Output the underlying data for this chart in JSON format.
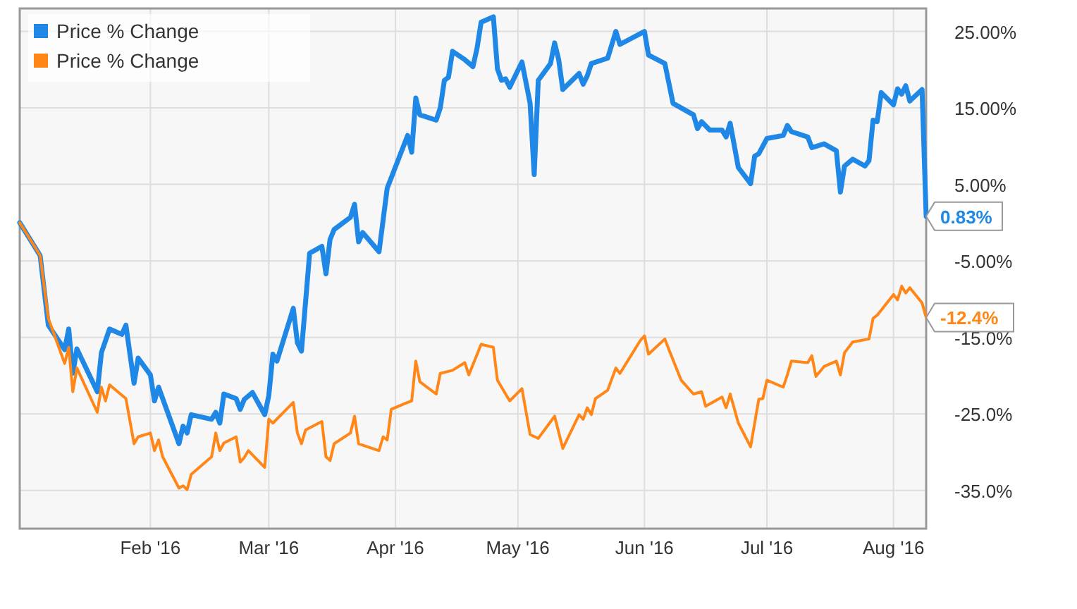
{
  "chart_data": {
    "type": "line",
    "xlim": [
      "2015-12-31",
      "2016-08-09"
    ],
    "xticks": [
      {
        "value": "2016-02-01",
        "label": "Feb '16"
      },
      {
        "value": "2016-03-01",
        "label": "Mar '16"
      },
      {
        "value": "2016-04-01",
        "label": "Apr '16"
      },
      {
        "value": "2016-05-01",
        "label": "May '16"
      },
      {
        "value": "2016-06-01",
        "label": "Jun '16"
      },
      {
        "value": "2016-07-01",
        "label": "Jul '16"
      },
      {
        "value": "2016-08-01",
        "label": "Aug '16"
      }
    ],
    "ylim": [
      -40,
      28
    ],
    "yticks": [
      {
        "value": 25,
        "label": "25.00%"
      },
      {
        "value": 15,
        "label": "15.00%"
      },
      {
        "value": 5,
        "label": "5.00%"
      },
      {
        "value": -5,
        "label": "-5.00%"
      },
      {
        "value": -15,
        "label": "-15.0%"
      },
      {
        "value": -25,
        "label": "-25.0%"
      },
      {
        "value": -35,
        "label": "-35.0%"
      }
    ],
    "grid": true,
    "legend": "top left",
    "marker": "none",
    "line_style": "solid",
    "series": [
      {
        "name": "Price % Change",
        "color": "#1f87e5",
        "x": [
          "2015-12-31",
          "2016-01-05",
          "2016-01-07",
          "2016-01-11",
          "2016-01-12",
          "2016-01-13",
          "2016-01-14",
          "2016-01-19",
          "2016-01-20",
          "2016-01-22",
          "2016-01-25",
          "2016-01-26",
          "2016-01-28",
          "2016-01-29",
          "2016-02-01",
          "2016-02-02",
          "2016-02-03",
          "2016-02-08",
          "2016-02-09",
          "2016-02-10",
          "2016-02-11",
          "2016-02-16",
          "2016-02-17",
          "2016-02-18",
          "2016-02-19",
          "2016-02-22",
          "2016-02-23",
          "2016-02-24",
          "2016-02-26",
          "2016-02-29",
          "2016-03-01",
          "2016-03-02",
          "2016-03-03",
          "2016-03-07",
          "2016-03-08",
          "2016-03-09",
          "2016-03-11",
          "2016-03-14",
          "2016-03-15",
          "2016-03-16",
          "2016-03-17",
          "2016-03-21",
          "2016-03-22",
          "2016-03-23",
          "2016-03-24",
          "2016-03-28",
          "2016-03-30",
          "2016-04-04",
          "2016-04-05",
          "2016-04-06",
          "2016-04-07",
          "2016-04-11",
          "2016-04-12",
          "2016-04-13",
          "2016-04-14",
          "2016-04-15",
          "2016-04-18",
          "2016-04-20",
          "2016-04-21",
          "2016-04-22",
          "2016-04-25",
          "2016-04-26",
          "2016-04-27",
          "2016-04-28",
          "2016-04-29",
          "2016-05-02",
          "2016-05-04",
          "2016-05-05",
          "2016-05-06",
          "2016-05-09",
          "2016-05-10",
          "2016-05-11",
          "2016-05-12",
          "2016-05-16",
          "2016-05-17",
          "2016-05-18",
          "2016-05-19",
          "2016-05-23",
          "2016-05-25",
          "2016-05-26",
          "2016-06-01",
          "2016-06-02",
          "2016-06-06",
          "2016-06-08",
          "2016-06-13",
          "2016-06-14",
          "2016-06-15",
          "2016-06-17",
          "2016-06-20",
          "2016-06-21",
          "2016-06-22",
          "2016-06-24",
          "2016-06-27",
          "2016-06-28",
          "2016-06-29",
          "2016-07-01",
          "2016-07-05",
          "2016-07-06",
          "2016-07-07",
          "2016-07-11",
          "2016-07-12",
          "2016-07-15",
          "2016-07-18",
          "2016-07-19",
          "2016-07-20",
          "2016-07-22",
          "2016-07-25",
          "2016-07-26",
          "2016-07-27",
          "2016-07-28",
          "2016-07-29",
          "2016-08-01",
          "2016-08-02",
          "2016-08-03",
          "2016-08-04",
          "2016-08-05",
          "2016-08-08",
          "2016-08-09"
        ],
        "values": [
          0,
          -4.3,
          -13.4,
          -16.6,
          -13.9,
          -19.7,
          -16.5,
          -22.1,
          -17,
          -13.9,
          -14.6,
          -13.4,
          -21,
          -17.7,
          -19.9,
          -23.3,
          -21.5,
          -28.9,
          -26.6,
          -27.5,
          -25.1,
          -25.7,
          -24.8,
          -26.2,
          -22.4,
          -23,
          -24.4,
          -23.1,
          -22.2,
          -25.1,
          -22.6,
          -17.2,
          -18.1,
          -11.2,
          -15.7,
          -16.8,
          -4,
          -3.1,
          -6.7,
          -2.2,
          -0.9,
          0.7,
          2.4,
          -2.5,
          -1.3,
          -3.8,
          4.5,
          11.4,
          9.2,
          16.3,
          14.1,
          13.4,
          15,
          18.6,
          19,
          22.4,
          21.3,
          20.4,
          22.8,
          26.2,
          26.9,
          20.1,
          18.6,
          18.8,
          17.7,
          21,
          15.6,
          6.3,
          18.6,
          20.8,
          23.5,
          21.3,
          17.4,
          19.5,
          18.1,
          19.2,
          20.8,
          21.5,
          25,
          23.3,
          25,
          21.9,
          20.8,
          15.6,
          14.1,
          12.3,
          13.2,
          12.1,
          12.1,
          11.2,
          13,
          7.2,
          5.1,
          8.7,
          9,
          11,
          11.4,
          12.7,
          11.9,
          11.2,
          9.8,
          10.3,
          9.4,
          4,
          7.4,
          8.3,
          7.4,
          8.1,
          13.4,
          13.2,
          17,
          15.4,
          17.5,
          16.8,
          17.9,
          15.9,
          17.4,
          0.83
        ]
      },
      {
        "name": "Price % Change",
        "color": "#ff8617",
        "x": [
          "2015-12-31",
          "2016-01-05",
          "2016-01-07",
          "2016-01-11",
          "2016-01-12",
          "2016-01-13",
          "2016-01-14",
          "2016-01-19",
          "2016-01-20",
          "2016-01-21",
          "2016-01-22",
          "2016-01-26",
          "2016-01-28",
          "2016-01-29",
          "2016-02-01",
          "2016-02-02",
          "2016-02-03",
          "2016-02-04",
          "2016-02-08",
          "2016-02-09",
          "2016-02-10",
          "2016-02-11",
          "2016-02-16",
          "2016-02-17",
          "2016-02-18",
          "2016-02-19",
          "2016-02-22",
          "2016-02-23",
          "2016-02-24",
          "2016-02-25",
          "2016-02-29",
          "2016-03-01",
          "2016-03-02",
          "2016-03-07",
          "2016-03-08",
          "2016-03-09",
          "2016-03-10",
          "2016-03-14",
          "2016-03-15",
          "2016-03-16",
          "2016-03-17",
          "2016-03-21",
          "2016-03-22",
          "2016-03-23",
          "2016-03-28",
          "2016-03-29",
          "2016-03-30",
          "2016-03-31",
          "2016-04-04",
          "2016-04-05",
          "2016-04-06",
          "2016-04-07",
          "2016-04-11",
          "2016-04-12",
          "2016-04-15",
          "2016-04-18",
          "2016-04-19",
          "2016-04-22",
          "2016-04-25",
          "2016-04-26",
          "2016-04-29",
          "2016-05-02",
          "2016-05-04",
          "2016-05-06",
          "2016-05-10",
          "2016-05-12",
          "2016-05-16",
          "2016-05-17",
          "2016-05-18",
          "2016-05-19",
          "2016-05-20",
          "2016-05-23",
          "2016-05-25",
          "2016-05-26",
          "2016-05-31",
          "2016-06-01",
          "2016-06-02",
          "2016-06-06",
          "2016-06-07",
          "2016-06-10",
          "2016-06-13",
          "2016-06-15",
          "2016-06-16",
          "2016-06-20",
          "2016-06-21",
          "2016-06-22",
          "2016-06-24",
          "2016-06-27",
          "2016-06-29",
          "2016-06-30",
          "2016-07-01",
          "2016-07-05",
          "2016-07-06",
          "2016-07-07",
          "2016-07-11",
          "2016-07-12",
          "2016-07-13",
          "2016-07-15",
          "2016-07-18",
          "2016-07-19",
          "2016-07-20",
          "2016-07-22",
          "2016-07-26",
          "2016-07-27",
          "2016-07-28",
          "2016-08-01",
          "2016-08-02",
          "2016-08-03",
          "2016-08-04",
          "2016-08-05",
          "2016-08-08",
          "2016-08-09"
        ],
        "values": [
          0,
          -4.3,
          -12.5,
          -18.4,
          -16.3,
          -22.1,
          -19,
          -24.8,
          -21.5,
          -23.3,
          -21.2,
          -23,
          -28.9,
          -28,
          -27.5,
          -29.8,
          -28.4,
          -30.6,
          -34.7,
          -34.4,
          -34.9,
          -32.9,
          -30.6,
          -27.5,
          -29.8,
          -28.8,
          -28,
          -31.3,
          -30.7,
          -29.8,
          -32,
          -25.7,
          -26.2,
          -23.5,
          -27.5,
          -28.9,
          -27.1,
          -26,
          -30.6,
          -31.1,
          -28.9,
          -27.5,
          -25.3,
          -28.9,
          -29.8,
          -28,
          -28.4,
          -24.4,
          -23.5,
          -23.3,
          -18.1,
          -20.8,
          -22.4,
          -19.7,
          -19.3,
          -18.3,
          -19.9,
          -15.9,
          -16.3,
          -20.6,
          -23.3,
          -21.7,
          -27.7,
          -28.2,
          -25.3,
          -29.5,
          -25.1,
          -25.7,
          -24.2,
          -25.1,
          -23,
          -21.9,
          -19,
          -19.7,
          -15.4,
          -14.8,
          -17.2,
          -15.2,
          -16.6,
          -20.6,
          -22.4,
          -22.1,
          -24,
          -22.8,
          -24.2,
          -22.4,
          -26.2,
          -29.3,
          -23.1,
          -23,
          -20.6,
          -21.5,
          -19.9,
          -18.1,
          -18.3,
          -17.4,
          -20.1,
          -18.8,
          -18.1,
          -19.9,
          -17,
          -15.6,
          -15.2,
          -12.5,
          -12.1,
          -9.4,
          -10.1,
          -8.3,
          -9.2,
          -8.5,
          -10.5,
          -12.4
        ]
      }
    ],
    "annotations": [
      {
        "text": "0.83%",
        "x": "2016-08-09",
        "y": 0.83
      },
      {
        "text": "-12.4%",
        "x": "2016-08-09",
        "y": -12.4
      }
    ]
  }
}
